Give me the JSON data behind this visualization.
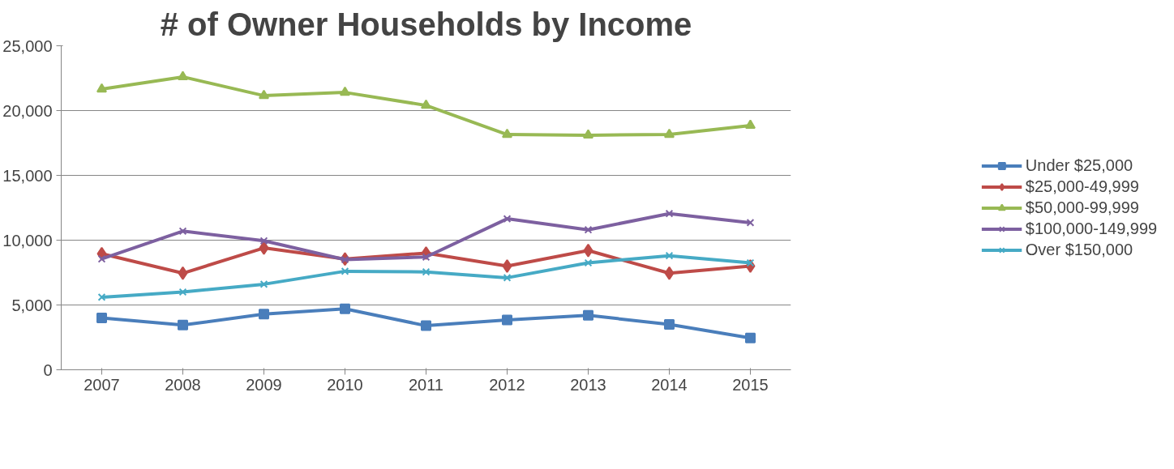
{
  "chart_data": {
    "type": "line",
    "title": "# of Owner Households by Income",
    "categories": [
      "2007",
      "2008",
      "2009",
      "2010",
      "2011",
      "2012",
      "2013",
      "2014",
      "2015"
    ],
    "series": [
      {
        "name": "Under $25,000",
        "color": "#4a7ebb",
        "marker": "square",
        "values": [
          4000,
          3450,
          4300,
          4700,
          3400,
          3850,
          4200,
          3500,
          2450
        ]
      },
      {
        "name": "$25,000-49,999",
        "color": "#be4b48",
        "marker": "diamond",
        "values": [
          8950,
          7450,
          9400,
          8550,
          9000,
          8000,
          9200,
          7450,
          8000
        ]
      },
      {
        "name": "$50,000-99,999",
        "color": "#98b954",
        "marker": "triangle",
        "values": [
          21650,
          22600,
          21150,
          21400,
          20400,
          18150,
          18100,
          18150,
          18850
        ]
      },
      {
        "name": "$100,000-149,999",
        "color": "#7d60a0",
        "marker": "cross",
        "values": [
          8550,
          10700,
          9950,
          8500,
          8700,
          11650,
          10800,
          12050,
          11350
        ]
      },
      {
        "name": "Over $150,000",
        "color": "#46aac5",
        "marker": "cross",
        "values": [
          5600,
          6000,
          6600,
          7600,
          7550,
          7100,
          8250,
          8800,
          8250
        ]
      }
    ],
    "ylim": [
      0,
      25000
    ],
    "yticks": [
      {
        "value": 0,
        "label": "0"
      },
      {
        "value": 5000,
        "label": "5,000"
      },
      {
        "value": 10000,
        "label": "10,000"
      },
      {
        "value": 15000,
        "label": "15,000"
      },
      {
        "value": 20000,
        "label": "20,000"
      },
      {
        "value": 25000,
        "label": "25,000"
      }
    ],
    "grid": "y",
    "legend": "right"
  }
}
